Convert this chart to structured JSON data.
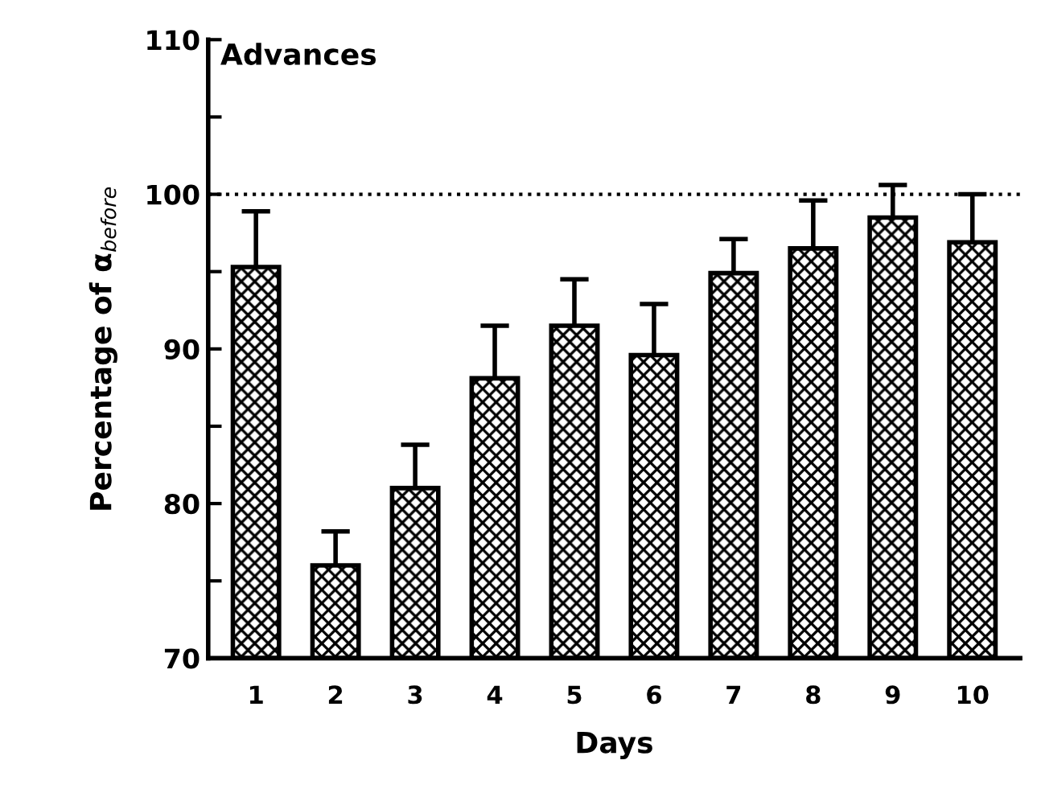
{
  "chart_data": {
    "type": "bar",
    "title": "Advances",
    "xlabel": "Days",
    "ylabel": "Percentage of α$_{before}$",
    "categories": [
      "1",
      "2",
      "3",
      "4",
      "5",
      "6",
      "7",
      "8",
      "9",
      "10"
    ],
    "values": [
      95.3,
      76.0,
      81.0,
      88.1,
      91.5,
      89.6,
      94.9,
      96.5,
      98.5,
      96.9
    ],
    "errors": [
      [
        95.3,
        98.9
      ],
      [
        76.0,
        78.2
      ],
      [
        81.0,
        83.8
      ],
      [
        88.1,
        91.5
      ],
      [
        91.5,
        94.5
      ],
      [
        89.6,
        92.9
      ],
      [
        94.9,
        97.1
      ],
      [
        96.5,
        99.6
      ],
      [
        98.5,
        100.6
      ],
      [
        96.9,
        100.0
      ]
    ],
    "color": "#000000",
    "ylim": [
      70,
      110
    ],
    "yticks": [
      70,
      {
        "value": 75,
        "label": null
      },
      80,
      {
        "value": 85,
        "label": null
      },
      90,
      {
        "value": 95,
        "label": null
      },
      100,
      {
        "value": 105,
        "label": null
      },
      110
    ],
    "ref_lines": [
      {
        "axis": "y",
        "value": 100,
        "label": null,
        "line_style": "dotted"
      }
    ],
    "grid": false,
    "legend": false
  }
}
